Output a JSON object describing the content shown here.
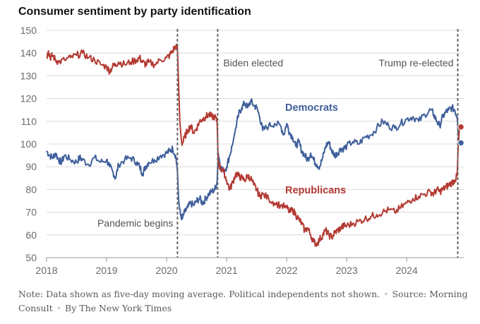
{
  "title": "Consumer sentiment by party identification",
  "note": {
    "text": "Note: Data shown as five-day moving average. Political independents not shown.",
    "source": "Source:",
    "source_name": "Morning Consult",
    "credit": "By The New York Times"
  },
  "colors": {
    "democrats": "#3f5f9b",
    "republicans": "#b33a33",
    "grid": "#dcdcdc",
    "events": "#666666"
  },
  "chart_data": {
    "type": "line",
    "title": "Consumer sentiment by party identification",
    "ylim": [
      50,
      150
    ],
    "yticks": [
      50,
      60,
      70,
      80,
      90,
      100,
      110,
      120,
      130,
      140,
      150
    ],
    "xlim": [
      2018.0,
      2024.95
    ],
    "xticks": [
      {
        "value": 2018,
        "label": "2018"
      },
      {
        "value": 2019,
        "label": "2019"
      },
      {
        "value": 2020,
        "label": "2020"
      },
      {
        "value": 2021,
        "label": "2021"
      },
      {
        "value": 2022,
        "label": "2022"
      },
      {
        "value": 2023,
        "label": "2023"
      },
      {
        "value": 2024,
        "label": "2024"
      }
    ],
    "grid": true,
    "events": [
      {
        "x": 2020.18,
        "label": "Pandemic begins"
      },
      {
        "x": 2020.85,
        "label": "Biden elected"
      },
      {
        "x": 2024.85,
        "label": "Trump re-elected"
      }
    ],
    "series": [
      {
        "name": "Democrats",
        "color": "#3f5f9b",
        "end_value": 100.5,
        "points": [
          [
            2018.0,
            97
          ],
          [
            2018.05,
            95
          ],
          [
            2018.1,
            94
          ],
          [
            2018.15,
            96
          ],
          [
            2018.2,
            93
          ],
          [
            2018.25,
            92
          ],
          [
            2018.3,
            95
          ],
          [
            2018.4,
            93
          ],
          [
            2018.5,
            92
          ],
          [
            2018.55,
            94
          ],
          [
            2018.6,
            93
          ],
          [
            2018.7,
            91
          ],
          [
            2018.8,
            94
          ],
          [
            2018.9,
            92
          ],
          [
            2019.0,
            93
          ],
          [
            2019.05,
            90
          ],
          [
            2019.1,
            88
          ],
          [
            2019.15,
            85
          ],
          [
            2019.2,
            91
          ],
          [
            2019.3,
            93
          ],
          [
            2019.4,
            94
          ],
          [
            2019.5,
            92
          ],
          [
            2019.55,
            90
          ],
          [
            2019.6,
            87
          ],
          [
            2019.65,
            90
          ],
          [
            2019.7,
            92
          ],
          [
            2019.8,
            93
          ],
          [
            2019.9,
            95
          ],
          [
            2020.0,
            96
          ],
          [
            2020.05,
            97
          ],
          [
            2020.1,
            98
          ],
          [
            2020.15,
            95
          ],
          [
            2020.18,
            88
          ],
          [
            2020.2,
            75
          ],
          [
            2020.23,
            69
          ],
          [
            2020.26,
            67
          ],
          [
            2020.3,
            70
          ],
          [
            2020.35,
            72
          ],
          [
            2020.4,
            74
          ],
          [
            2020.45,
            73
          ],
          [
            2020.5,
            75
          ],
          [
            2020.55,
            76
          ],
          [
            2020.6,
            74
          ],
          [
            2020.65,
            76
          ],
          [
            2020.7,
            78
          ],
          [
            2020.75,
            79
          ],
          [
            2020.8,
            80
          ],
          [
            2020.84,
            83
          ],
          [
            2020.86,
            96
          ],
          [
            2020.9,
            90
          ],
          [
            2020.95,
            88
          ],
          [
            2021.0,
            90
          ],
          [
            2021.05,
            95
          ],
          [
            2021.1,
            100
          ],
          [
            2021.15,
            107
          ],
          [
            2021.2,
            113
          ],
          [
            2021.25,
            116
          ],
          [
            2021.3,
            118
          ],
          [
            2021.35,
            116
          ],
          [
            2021.4,
            119
          ],
          [
            2021.45,
            117
          ],
          [
            2021.5,
            116
          ],
          [
            2021.55,
            112
          ],
          [
            2021.6,
            106
          ],
          [
            2021.7,
            108
          ],
          [
            2021.8,
            109
          ],
          [
            2021.9,
            108
          ],
          [
            2021.95,
            104
          ],
          [
            2022.0,
            109
          ],
          [
            2022.05,
            105
          ],
          [
            2022.1,
            103
          ],
          [
            2022.15,
            99
          ],
          [
            2022.2,
            101
          ],
          [
            2022.25,
            97
          ],
          [
            2022.3,
            95
          ],
          [
            2022.35,
            93
          ],
          [
            2022.4,
            96
          ],
          [
            2022.45,
            93
          ],
          [
            2022.5,
            91
          ],
          [
            2022.55,
            90
          ],
          [
            2022.6,
            94
          ],
          [
            2022.65,
            99
          ],
          [
            2022.7,
            101
          ],
          [
            2022.75,
            97
          ],
          [
            2022.8,
            95
          ],
          [
            2022.85,
            96
          ],
          [
            2022.9,
            98
          ],
          [
            2022.95,
            98
          ],
          [
            2023.0,
            99
          ],
          [
            2023.1,
            101
          ],
          [
            2023.2,
            100
          ],
          [
            2023.3,
            103
          ],
          [
            2023.4,
            104
          ],
          [
            2023.5,
            107
          ],
          [
            2023.6,
            110
          ],
          [
            2023.7,
            108
          ],
          [
            2023.8,
            107
          ],
          [
            2023.9,
            109
          ],
          [
            2024.0,
            111
          ],
          [
            2024.1,
            112
          ],
          [
            2024.2,
            110
          ],
          [
            2024.3,
            113
          ],
          [
            2024.4,
            115
          ],
          [
            2024.45,
            113
          ],
          [
            2024.5,
            110
          ],
          [
            2024.55,
            108
          ],
          [
            2024.6,
            112
          ],
          [
            2024.65,
            114
          ],
          [
            2024.7,
            115
          ],
          [
            2024.75,
            116
          ],
          [
            2024.8,
            115
          ],
          [
            2024.84,
            112
          ],
          [
            2024.86,
            104
          ],
          [
            2024.88,
            100.5
          ]
        ]
      },
      {
        "name": "Republicans",
        "color": "#b33a33",
        "end_value": 107.5,
        "points": [
          [
            2018.0,
            138
          ],
          [
            2018.03,
            141
          ],
          [
            2018.06,
            138
          ],
          [
            2018.1,
            139
          ],
          [
            2018.15,
            137
          ],
          [
            2018.2,
            136
          ],
          [
            2018.3,
            137
          ],
          [
            2018.4,
            138
          ],
          [
            2018.5,
            139
          ],
          [
            2018.6,
            140
          ],
          [
            2018.7,
            138
          ],
          [
            2018.8,
            137
          ],
          [
            2018.9,
            135
          ],
          [
            2019.0,
            134
          ],
          [
            2019.05,
            132
          ],
          [
            2019.1,
            134
          ],
          [
            2019.15,
            135
          ],
          [
            2019.2,
            136
          ],
          [
            2019.3,
            135
          ],
          [
            2019.4,
            136
          ],
          [
            2019.5,
            137
          ],
          [
            2019.55,
            138
          ],
          [
            2019.6,
            136
          ],
          [
            2019.65,
            135
          ],
          [
            2019.7,
            136
          ],
          [
            2019.8,
            135
          ],
          [
            2019.9,
            137
          ],
          [
            2020.0,
            138
          ],
          [
            2020.05,
            139
          ],
          [
            2020.1,
            141
          ],
          [
            2020.15,
            143
          ],
          [
            2020.18,
            142
          ],
          [
            2020.2,
            125
          ],
          [
            2020.22,
            110
          ],
          [
            2020.24,
            103
          ],
          [
            2020.26,
            100
          ],
          [
            2020.3,
            103
          ],
          [
            2020.35,
            106
          ],
          [
            2020.4,
            108
          ],
          [
            2020.45,
            105
          ],
          [
            2020.5,
            107
          ],
          [
            2020.55,
            110
          ],
          [
            2020.6,
            111
          ],
          [
            2020.65,
            112
          ],
          [
            2020.7,
            113
          ],
          [
            2020.75,
            112
          ],
          [
            2020.8,
            112
          ],
          [
            2020.84,
            110
          ],
          [
            2020.86,
            92
          ],
          [
            2020.9,
            89
          ],
          [
            2020.95,
            88
          ],
          [
            2021.0,
            84
          ],
          [
            2021.05,
            80
          ],
          [
            2021.1,
            83
          ],
          [
            2021.15,
            87
          ],
          [
            2021.2,
            86
          ],
          [
            2021.25,
            85
          ],
          [
            2021.3,
            84
          ],
          [
            2021.35,
            86
          ],
          [
            2021.4,
            85
          ],
          [
            2021.45,
            82
          ],
          [
            2021.5,
            80
          ],
          [
            2021.55,
            77
          ],
          [
            2021.6,
            78
          ],
          [
            2021.7,
            76
          ],
          [
            2021.8,
            74
          ],
          [
            2021.9,
            73
          ],
          [
            2022.0,
            72
          ],
          [
            2022.05,
            70
          ],
          [
            2022.1,
            71
          ],
          [
            2022.15,
            69
          ],
          [
            2022.2,
            67
          ],
          [
            2022.25,
            65
          ],
          [
            2022.3,
            62
          ],
          [
            2022.35,
            63
          ],
          [
            2022.4,
            60
          ],
          [
            2022.45,
            57
          ],
          [
            2022.5,
            56
          ],
          [
            2022.55,
            58
          ],
          [
            2022.6,
            60
          ],
          [
            2022.65,
            62
          ],
          [
            2022.7,
            60
          ],
          [
            2022.75,
            59
          ],
          [
            2022.8,
            61
          ],
          [
            2022.85,
            62
          ],
          [
            2022.9,
            63
          ],
          [
            2022.95,
            64
          ],
          [
            2023.0,
            64
          ],
          [
            2023.1,
            65
          ],
          [
            2023.2,
            66
          ],
          [
            2023.3,
            67
          ],
          [
            2023.4,
            68
          ],
          [
            2023.5,
            69
          ],
          [
            2023.6,
            70
          ],
          [
            2023.7,
            71
          ],
          [
            2023.8,
            70
          ],
          [
            2023.9,
            72
          ],
          [
            2024.0,
            74
          ],
          [
            2024.1,
            76
          ],
          [
            2024.2,
            77
          ],
          [
            2024.3,
            78
          ],
          [
            2024.4,
            79
          ],
          [
            2024.45,
            78
          ],
          [
            2024.5,
            80
          ],
          [
            2024.55,
            79
          ],
          [
            2024.6,
            80
          ],
          [
            2024.65,
            81
          ],
          [
            2024.7,
            82
          ],
          [
            2024.75,
            83
          ],
          [
            2024.8,
            84
          ],
          [
            2024.84,
            86
          ],
          [
            2024.86,
            100
          ],
          [
            2024.88,
            107.5
          ]
        ]
      }
    ]
  }
}
